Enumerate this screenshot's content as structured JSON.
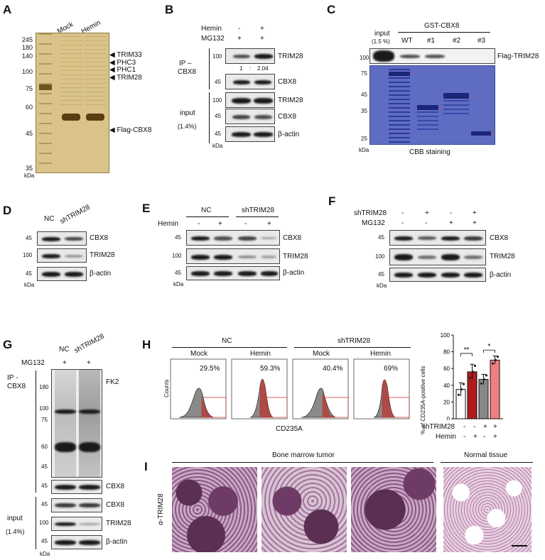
{
  "panels": {
    "A": {
      "label": "A",
      "lanes": [
        "Mock",
        "Hemin"
      ],
      "markers": [
        "245",
        "180",
        "140",
        "100",
        "75",
        "60",
        "45",
        "35"
      ],
      "unit": "kDa",
      "annotations": [
        "TRIM33",
        "PHC3",
        "PHC1",
        "TRIM28",
        "Flag-CBX8"
      ]
    },
    "B": {
      "label": "B",
      "conditions": [
        {
          "name": "Hemin",
          "values": [
            "-",
            "+"
          ]
        },
        {
          "name": "MG132",
          "values": [
            "+",
            "+"
          ]
        }
      ],
      "ip_label": "IP –\nCBX8",
      "ip_label_lines": [
        "IP –",
        "CBX8"
      ],
      "input_label_lines": [
        "input",
        "(1.4%)"
      ],
      "ratio": [
        "1",
        ":",
        "2.04"
      ],
      "rows": [
        {
          "marker": "100",
          "name": "TRIM28"
        },
        {
          "marker": "45",
          "name": "CBX8"
        },
        {
          "marker": "100",
          "name": "TRIM28"
        },
        {
          "marker": "45",
          "name": "CBX8"
        },
        {
          "marker": "45",
          "name": "β-actin"
        }
      ],
      "unit": "kDa"
    },
    "C": {
      "label": "C",
      "header": "GST-CBX8",
      "lanes": [
        "WT",
        "#1",
        "#2",
        "#3"
      ],
      "input_lines": [
        "input",
        "(1.5 %)"
      ],
      "top_marker": "100",
      "top_row": "Flag-TRIM28",
      "gel_markers": [
        "75",
        "45",
        "35",
        "25"
      ],
      "unit": "kDa",
      "caption": "CBB staining"
    },
    "D": {
      "label": "D",
      "lanes": [
        "NC",
        "shTRIM28"
      ],
      "rows": [
        {
          "marker": "45",
          "name": "CBX8"
        },
        {
          "marker": "100",
          "name": "TRIM28"
        },
        {
          "marker": "45",
          "name": "β-actin"
        }
      ],
      "unit": "kDa"
    },
    "E": {
      "label": "E",
      "groups": [
        "NC",
        "shTRIM28"
      ],
      "condition": "Hemin",
      "signs": [
        "-",
        "+",
        "-",
        "+"
      ],
      "rows": [
        {
          "marker": "45",
          "name": "CBX8"
        },
        {
          "marker": "100",
          "name": "TRIM28"
        },
        {
          "marker": "45",
          "name": "β-actin"
        }
      ],
      "unit": "kDa"
    },
    "F": {
      "label": "F",
      "conditions": [
        {
          "name": "shTRIM28",
          "values": [
            "-",
            "+",
            "-",
            "+"
          ]
        },
        {
          "name": "MG132",
          "values": [
            "-",
            "-",
            "+",
            "+"
          ]
        }
      ],
      "rows": [
        {
          "marker": "45",
          "name": "CBX8"
        },
        {
          "marker": "100",
          "name": "TRIM28"
        },
        {
          "marker": "45",
          "name": "β-actin"
        }
      ],
      "unit": "kDa"
    },
    "G": {
      "label": "G",
      "lanes": [
        "NC",
        "shTRIM28"
      ],
      "condition": "MG132",
      "signs": [
        "+",
        "+"
      ],
      "ip_label_lines": [
        "IP -",
        "CBX8"
      ],
      "input_label_lines": [
        "input",
        "(1.4%)"
      ],
      "ip_markers": [
        "180",
        "100",
        "75",
        "60",
        "45"
      ],
      "ip_row": "FK2",
      "rows": [
        {
          "marker": "45",
          "name": "CBX8"
        },
        {
          "marker": "45",
          "name": "CBX8"
        },
        {
          "marker": "100",
          "name": "TRIM28"
        },
        {
          "marker": "45",
          "name": "β-actin"
        }
      ],
      "unit": "kDa"
    },
    "H": {
      "label": "H",
      "groups": [
        "NC",
        "shTRIM28"
      ],
      "subgroups": [
        "Mock",
        "Hemin",
        "Mock",
        "Hemin"
      ],
      "percents": [
        "29.5%",
        "59.3%",
        "40.4%",
        "69%"
      ],
      "xlabel": "CD235A",
      "ylabel": "Counts",
      "bar_ylabel": "% of CD235A-positive cells",
      "sig": [
        "**",
        "*"
      ],
      "condition_rows": [
        {
          "name": "shTRIM28",
          "values": [
            "-",
            "-",
            "+",
            "+"
          ]
        },
        {
          "name": "Hemin",
          "values": [
            "-",
            "+",
            "-",
            "+"
          ]
        }
      ]
    },
    "I": {
      "label": "I",
      "group_left": "Bone marrow tumor",
      "group_right": "Normal tissue",
      "ylabel": "α-TRIM28"
    }
  },
  "chart_data": {
    "type": "bar",
    "categories": [
      "1",
      "2",
      "3",
      "4"
    ],
    "values": [
      35,
      56,
      47,
      70
    ],
    "errors": [
      8,
      9,
      6,
      5
    ],
    "colors": [
      "#ffffff",
      "#b01c1c",
      "#888888",
      "#f08080"
    ],
    "title": "",
    "xlabel": "",
    "ylabel": "% of CD235A-positive cells",
    "ylim": [
      0,
      100
    ],
    "yticks": [
      "0",
      "20",
      "40",
      "60",
      "80",
      "100"
    ]
  }
}
